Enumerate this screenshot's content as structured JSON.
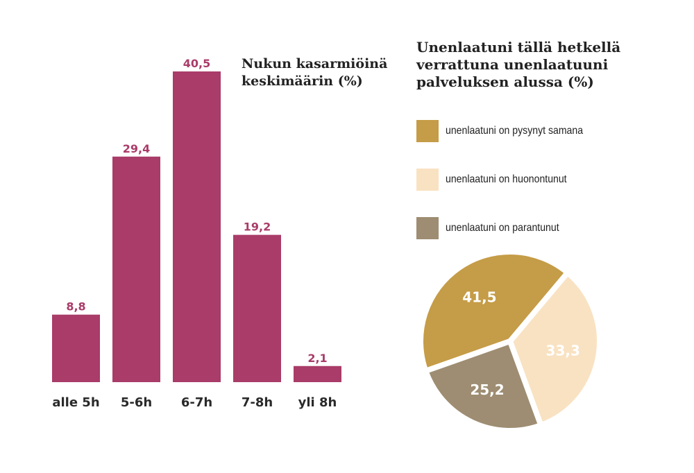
{
  "chart_data": [
    {
      "type": "bar",
      "title": "Nukun kasarmiöinä keskimäärin (%)",
      "categories": [
        "alle 5h",
        "5-6h",
        "6-7h",
        "7-8h",
        "yli 8h"
      ],
      "values": [
        8.8,
        29.4,
        40.5,
        19.2,
        2.1
      ],
      "value_labels": [
        "8,8",
        "29,4",
        "40,5",
        "19,2",
        "2,1"
      ],
      "color": "#a93c69",
      "ylim": [
        0,
        45
      ]
    },
    {
      "type": "pie",
      "title": "Unenlaatuni tällä hetkellä verrattuna unenlaatuuni palveluksen alussa (%)",
      "slices": [
        {
          "label": "unenlaatuni on pysynyt samana",
          "value": 41.5,
          "value_label": "41,5",
          "color": "#c59c47"
        },
        {
          "label": "unenlaatuni on huonontunut",
          "value": 33.3,
          "value_label": "33,3",
          "color": "#f9e2c2"
        },
        {
          "label": "unenlaatuni on parantunut",
          "value": 25.2,
          "value_label": "25,2",
          "color": "#9e8d72"
        }
      ],
      "legend_position": "top"
    }
  ],
  "titles": {
    "bar_line1": "Nukun kasarmiöinä",
    "bar_line2": "keskimäärin (%)",
    "pie_line1": "Unenlaatuni tällä hetkellä",
    "pie_line2": "verrattuna unenlaatuuni",
    "pie_line3": "palveluksen alussa (%)"
  }
}
